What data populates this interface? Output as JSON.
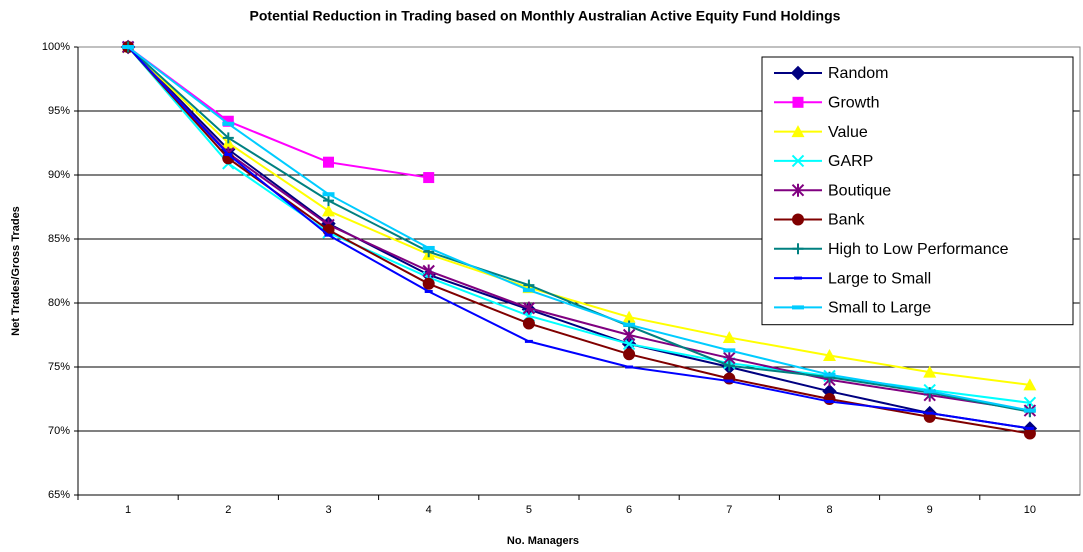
{
  "chart_data": {
    "type": "line",
    "title": "Potential Reduction in Trading based on Monthly Australian Active Equity Fund Holdings",
    "x_label": "No. Managers",
    "y_label": "Net Trades/Gross Trades",
    "categories": [
      "1",
      "2",
      "3",
      "4",
      "5",
      "6",
      "7",
      "8",
      "9",
      "10"
    ],
    "ylim": [
      65,
      100
    ],
    "yticks": [
      {
        "value": 65,
        "label": "65%"
      },
      {
        "value": 70,
        "label": "70%"
      },
      {
        "value": 75,
        "label": "75%"
      },
      {
        "value": 80,
        "label": "80%"
      },
      {
        "value": 85,
        "label": "85%"
      },
      {
        "value": 90,
        "label": "90%"
      },
      {
        "value": 95,
        "label": "95%"
      },
      {
        "value": 100,
        "label": "100%"
      }
    ],
    "grid": true,
    "legend": "upper right",
    "series": [
      {
        "name": "Random",
        "color": "#000080",
        "marker": "diamond",
        "values": [
          100,
          92.0,
          86.2,
          82.2,
          79.5,
          76.8,
          75.0,
          73.1,
          71.4,
          70.2
        ]
      },
      {
        "name": "Growth",
        "color": "#ff00ff",
        "marker": "square",
        "values": [
          100,
          94.2,
          91.0,
          89.8,
          null,
          null,
          null,
          null,
          null,
          null
        ]
      },
      {
        "name": "Value",
        "color": "#ffff00",
        "marker": "triangle",
        "values": [
          100,
          92.5,
          87.2,
          83.8,
          81.2,
          78.9,
          77.3,
          75.9,
          74.6,
          73.6
        ]
      },
      {
        "name": "GARP",
        "color": "#00ffff",
        "marker": "x",
        "values": [
          100,
          90.9,
          85.5,
          82.0,
          79.0,
          76.8,
          75.3,
          74.3,
          73.2,
          72.2
        ]
      },
      {
        "name": "Boutique",
        "color": "#800080",
        "marker": "star",
        "values": [
          100,
          91.7,
          86.1,
          82.5,
          79.6,
          77.5,
          75.7,
          74.0,
          72.8,
          71.6
        ]
      },
      {
        "name": "Bank",
        "color": "#800000",
        "marker": "circle",
        "values": [
          100,
          91.3,
          85.7,
          81.5,
          78.4,
          76.0,
          74.1,
          72.5,
          71.1,
          69.8
        ]
      },
      {
        "name": "High to Low Performance",
        "color": "#008080",
        "marker": "plus",
        "values": [
          100,
          92.9,
          88.0,
          84.0,
          81.4,
          78.2,
          75.1,
          74.2,
          73.0,
          71.5
        ]
      },
      {
        "name": "Large to Small",
        "color": "#0000ff",
        "marker": "dash",
        "values": [
          100,
          91.6,
          85.3,
          80.9,
          77.0,
          75.0,
          73.9,
          72.3,
          71.4,
          70.2
        ]
      },
      {
        "name": "Small to Large",
        "color": "#00ccff",
        "marker": "wide-dash",
        "values": [
          100,
          94.0,
          88.5,
          84.3,
          81.0,
          78.3,
          76.3,
          74.4,
          73.1,
          71.6
        ]
      }
    ]
  }
}
